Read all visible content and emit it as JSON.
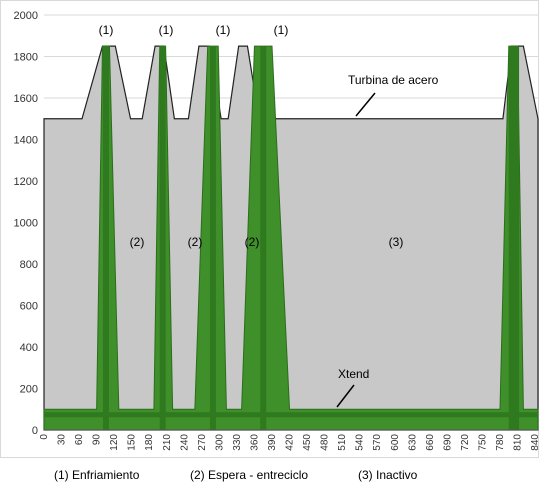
{
  "chart_data": {
    "type": "area",
    "y_ticks": [
      "0",
      "200",
      "400",
      "600",
      "800",
      "1000",
      "1200",
      "1400",
      "1600",
      "1800",
      "2000"
    ],
    "ylim": [
      0,
      2000
    ],
    "x_ticks": [
      "0",
      "30",
      "60",
      "90",
      "120",
      "150",
      "180",
      "210",
      "240",
      "270",
      "300",
      "330",
      "360",
      "390",
      "420",
      "450",
      "480",
      "510",
      "540",
      "570",
      "600",
      "630",
      "660",
      "690",
      "720",
      "750",
      "780",
      "810",
      "840"
    ],
    "xlim": [
      0,
      845
    ],
    "grid": true,
    "series": [
      {
        "name": "Turbina de acero",
        "color": "#c8c8c8",
        "x": [
          0,
          65,
          100,
          122,
          148,
          168,
          190,
          205,
          223,
          247,
          265,
          283,
          303,
          315,
          333,
          348,
          368,
          389,
          418,
          449,
          448,
          715,
          760,
          785,
          800,
          820,
          845
        ],
        "y": [
          1500,
          1500,
          1850,
          1850,
          1500,
          1500,
          1850,
          1850,
          1500,
          1500,
          1850,
          1850,
          1500,
          1500,
          1850,
          1850,
          1500,
          1500,
          1500,
          1500,
          1500,
          1500,
          1500,
          1500,
          1850,
          1850,
          1500
        ]
      },
      {
        "name": "Xtend",
        "color": "#3f8f2a",
        "x": [
          0,
          90,
          100,
          112,
          128,
          140,
          188,
          198,
          208,
          220,
          238,
          258,
          280,
          298,
          312,
          320,
          338,
          360,
          390,
          420,
          450,
          780,
          795,
          805,
          810,
          820,
          845
        ],
        "y": [
          100,
          100,
          1850,
          1850,
          100,
          100,
          100,
          1850,
          1850,
          100,
          100,
          100,
          1850,
          1850,
          100,
          100,
          100,
          1850,
          1850,
          100,
          100,
          100,
          1850,
          1850,
          1850,
          100,
          100
        ]
      }
    ],
    "annotations": {
      "peak_label": "(1)",
      "steel_label": "Turbina de acero",
      "xtend_label": "Xtend",
      "phase2_label": "(2)",
      "phase3_label": "(3)"
    }
  },
  "legend": {
    "item1": "(1) Enfriamiento",
    "item2": "(2) Espera - entreciclo",
    "item3": "(3) Inactivo"
  }
}
